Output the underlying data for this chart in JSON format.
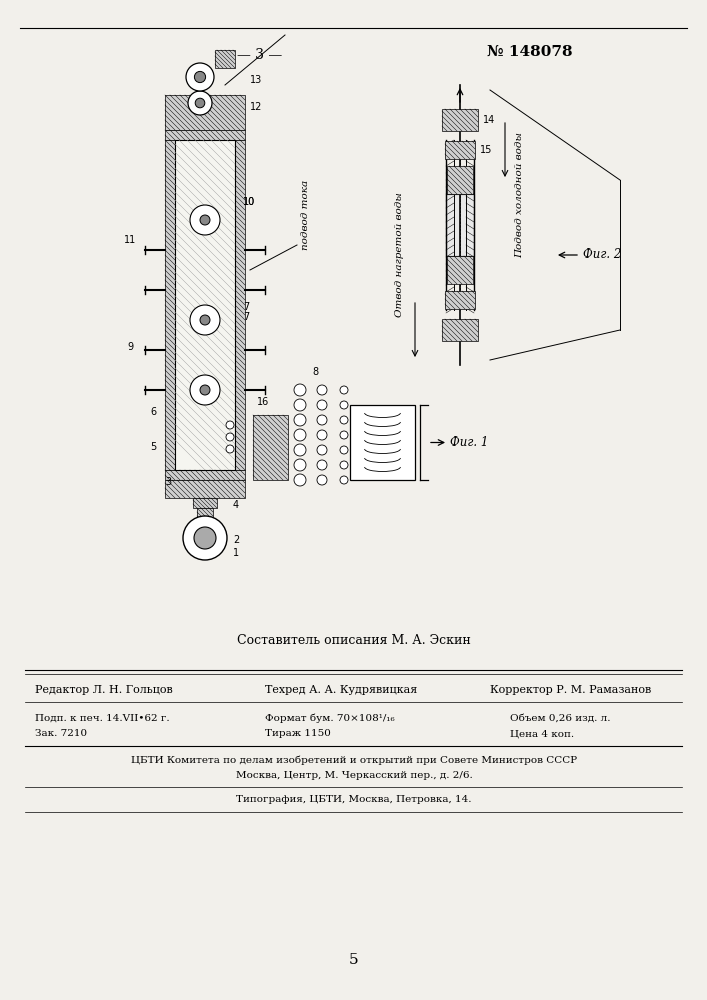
{
  "page_color": "#f2f0eb",
  "page_number_text": "— 3 —",
  "patent_text": "№ 148078",
  "composer_text": "Составитель описания М. А. Эскин",
  "editor_label": "Редактор Л. Н. Гольцов",
  "techred_label": "Техред А. А. Кудрявицкая",
  "corrector_label": "Корректор Р. М. Рамазанов",
  "line1_left": "Подп. к печ. 14.VII•62 г.",
  "line1_mid": "Формат бум. 70×108¹/₁₆",
  "line1_right": "Объем 0,26 изд. л.",
  "line2_left": "Зак. 7210",
  "line2_mid": "Тираж 1150",
  "line2_right": "Цена 4 коп.",
  "line3": "ЦБТИ Комитета по делам изобретений и открытий при Совете Министров СССР",
  "line4": "Москва, Центр, М. Черкасский пер., д. 2/6.",
  "line5": "Типография, ЦБТИ, Москва, Петровка, 14.",
  "page_bottom": "5",
  "fig1_label": "Фиг. 1",
  "fig2_label": "Фиг. 2",
  "podvod_toka": "подвод тока",
  "podvod_kh": "Подвод холодной воды",
  "otvod_nagr": "Отвод нагретой воды"
}
